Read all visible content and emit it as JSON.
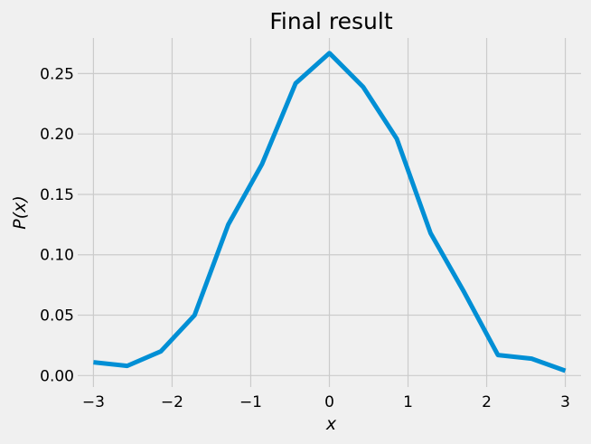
{
  "chart_data": {
    "type": "line",
    "title": "Final result",
    "xlabel": "x",
    "ylabel": "P(x)",
    "xlim": [
      -3.2,
      3.2
    ],
    "ylim": [
      -0.0095,
      0.2795
    ],
    "xticks": [
      -3,
      -2,
      -1,
      0,
      1,
      2,
      3
    ],
    "xtick_labels": [
      "−3",
      "−2",
      "−1",
      "0",
      "1",
      "2",
      "3"
    ],
    "yticks": [
      0.0,
      0.05,
      0.1,
      0.15,
      0.2,
      0.25
    ],
    "ytick_labels": [
      "0.00",
      "0.05",
      "0.10",
      "0.15",
      "0.20",
      "0.25"
    ],
    "grid": true,
    "series": [
      {
        "color": "#008fd5",
        "x": [
          -3.0,
          -2.571,
          -2.143,
          -1.714,
          -1.286,
          -0.857,
          -0.429,
          0.0,
          0.429,
          0.857,
          1.286,
          1.714,
          2.143,
          2.571,
          3.0
        ],
        "y": [
          0.011,
          0.008,
          0.02,
          0.05,
          0.125,
          0.175,
          0.242,
          0.267,
          0.239,
          0.196,
          0.118,
          0.069,
          0.017,
          0.014,
          0.004
        ]
      }
    ]
  }
}
